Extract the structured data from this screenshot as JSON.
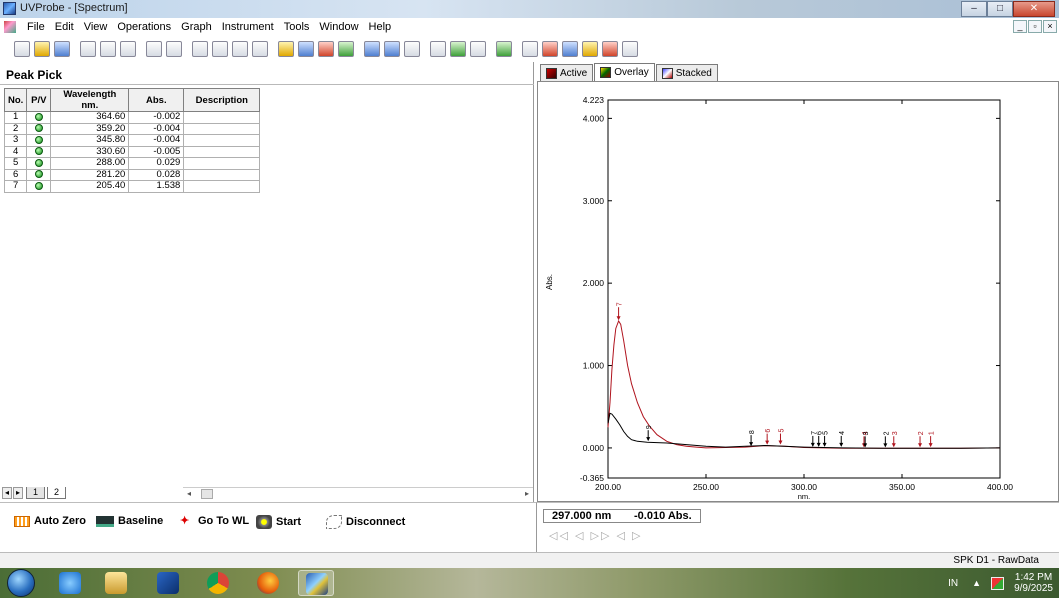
{
  "window": {
    "title": "UVProbe - [Spectrum]",
    "controls": {
      "minimize": "–",
      "maximize": "□",
      "close": "✕"
    }
  },
  "menu": {
    "items": [
      "File",
      "Edit",
      "View",
      "Operations",
      "Graph",
      "Instrument",
      "Tools",
      "Window",
      "Help"
    ],
    "mdi_controls": {
      "minimize": "_",
      "restore": "▫",
      "close": "×"
    }
  },
  "peak_pick": {
    "title": "Peak Pick",
    "columns": [
      "No.",
      "P/V",
      "Wavelength nm.",
      "Abs.",
      "Description"
    ],
    "rows": [
      {
        "no": "1",
        "wavelength": "364.60",
        "abs": "-0.002",
        "description": ""
      },
      {
        "no": "2",
        "wavelength": "359.20",
        "abs": "-0.004",
        "description": ""
      },
      {
        "no": "3",
        "wavelength": "345.80",
        "abs": "-0.004",
        "description": ""
      },
      {
        "no": "4",
        "wavelength": "330.60",
        "abs": "-0.005",
        "description": ""
      },
      {
        "no": "5",
        "wavelength": "288.00",
        "abs": "0.029",
        "description": ""
      },
      {
        "no": "6",
        "wavelength": "281.20",
        "abs": "0.028",
        "description": ""
      },
      {
        "no": "7",
        "wavelength": "205.40",
        "abs": "1.538",
        "description": ""
      }
    ],
    "sheet_tabs": [
      "1",
      "2"
    ]
  },
  "controls": {
    "auto_zero": "Auto Zero",
    "baseline": "Baseline",
    "go_to_wl": "Go To WL",
    "start": "Start",
    "disconnect": "Disconnect"
  },
  "graph_tabs": [
    {
      "label": "Active",
      "icon": "active-spectrum-icon"
    },
    {
      "label": "Overlay",
      "icon": "overlay-spectrum-icon",
      "selected": true
    },
    {
      "label": "Stacked",
      "icon": "stacked-spectrum-icon"
    }
  ],
  "readout": {
    "wavelength": "297.000 nm",
    "absorbance": "-0.010 Abs.",
    "arrows": "◁◁ ◁ ▷▷   ◁ ▷"
  },
  "status": {
    "text": "SPK D1 - RawData"
  },
  "taskbar": {
    "lang": "IN",
    "tray_up": "▲",
    "time": "1:42 PM",
    "date": "9/9/2025"
  },
  "chart_data": {
    "type": "line",
    "xlabel": "nm.",
    "ylabel": "Abs.",
    "xlim": [
      200.0,
      400.0
    ],
    "ylim": [
      -0.365,
      4.223
    ],
    "x_ticks": [
      "200.00",
      "250.00",
      "300.00",
      "350.00",
      "400.00"
    ],
    "y_ticks": [
      "-0.365",
      "0.000",
      "1.000",
      "2.000",
      "3.000",
      "4.000",
      "4.223"
    ],
    "colors": {
      "red": "#b0141e",
      "black": "#000000"
    },
    "series": [
      {
        "color": "red",
        "x": [
          200.0,
          201.0,
          202.0,
          203.0,
          204.0,
          205.4,
          206.5,
          208.0,
          210.0,
          212.0,
          215.0,
          218.0,
          221.0,
          225.0,
          230.0,
          235.0,
          240.0,
          245.0,
          250.0,
          260.0,
          270.0,
          280.0,
          290.0,
          300.0,
          320.0,
          340.0,
          360.0,
          380.0,
          400.0
        ],
        "y": [
          0.25,
          0.55,
          0.95,
          1.25,
          1.45,
          1.54,
          1.5,
          1.3,
          1.0,
          0.78,
          0.55,
          0.38,
          0.27,
          0.16,
          0.08,
          0.04,
          0.02,
          0.01,
          0.0,
          0.005,
          0.01,
          0.028,
          0.02,
          0.005,
          -0.004,
          -0.004,
          -0.004,
          -0.003,
          0.0
        ]
      },
      {
        "color": "black",
        "x": [
          200.0,
          201.0,
          202.0,
          204.0,
          206.0,
          208.0,
          210.0,
          212.0,
          215.0,
          220.0,
          230.0,
          240.0,
          250.0,
          260.0,
          270.0,
          280.0,
          290.0,
          300.0,
          320.0,
          340.0,
          360.0,
          380.0,
          400.0
        ],
        "y": [
          0.3,
          0.42,
          0.41,
          0.35,
          0.28,
          0.2,
          0.14,
          0.1,
          0.08,
          0.07,
          0.06,
          0.04,
          0.02,
          0.01,
          0.02,
          0.03,
          0.02,
          0.01,
          0.0,
          -0.005,
          -0.004,
          -0.003,
          0.0
        ]
      }
    ],
    "peak_markers": [
      {
        "label": "7",
        "x": 205.4,
        "y": 1.538,
        "color": "red"
      },
      {
        "label": "9",
        "x": 220.5,
        "y": 0.07,
        "color": "black"
      },
      {
        "label": "8",
        "x": 273.0,
        "y": 0.01,
        "color": "black"
      },
      {
        "label": "6",
        "x": 281.2,
        "y": 0.028,
        "color": "red"
      },
      {
        "label": "5",
        "x": 288.0,
        "y": 0.029,
        "color": "red"
      },
      {
        "label": "7",
        "x": 304.5,
        "y": 0.0,
        "color": "black"
      },
      {
        "label": "6",
        "x": 307.5,
        "y": 0.0,
        "color": "black"
      },
      {
        "label": "5",
        "x": 310.5,
        "y": 0.0,
        "color": "black"
      },
      {
        "label": "4",
        "x": 319.0,
        "y": 0.0,
        "color": "black"
      },
      {
        "label": "4",
        "x": 330.6,
        "y": -0.005,
        "color": "red"
      },
      {
        "label": "3",
        "x": 331.2,
        "y": -0.005,
        "color": "black"
      },
      {
        "label": "2",
        "x": 341.5,
        "y": -0.005,
        "color": "black"
      },
      {
        "label": "3",
        "x": 345.8,
        "y": -0.004,
        "color": "red"
      },
      {
        "label": "2",
        "x": 359.2,
        "y": -0.004,
        "color": "red"
      },
      {
        "label": "1",
        "x": 364.6,
        "y": -0.002,
        "color": "red"
      }
    ]
  }
}
